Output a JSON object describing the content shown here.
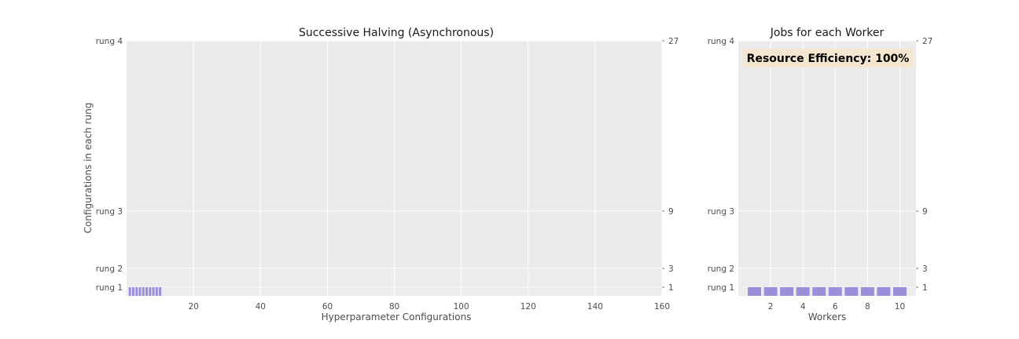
{
  "chart_data": [
    {
      "type": "bar",
      "title": "Successive Halving (Asynchronous)",
      "xlabel": "Hyperparameter Configurations",
      "ylabel": "Configurations in each rung",
      "xlim": [
        0,
        160
      ],
      "xticks": [
        "20",
        "40",
        "60",
        "80",
        "100",
        "120",
        "140",
        "160"
      ],
      "yticks_left": [
        "rung 1",
        "rung 2",
        "rung 3",
        "rung 4"
      ],
      "yticks_right": [
        "1",
        "3",
        "9",
        "27"
      ],
      "grid": true,
      "bar_color": "#9b8fdc",
      "configurations": [
        1,
        2,
        3,
        4,
        5,
        6,
        7,
        8,
        9,
        10
      ],
      "rung": [
        1,
        1,
        1,
        1,
        1,
        1,
        1,
        1,
        1,
        1
      ]
    },
    {
      "type": "bar",
      "title": "Jobs for each Worker",
      "xlabel": "Workers",
      "xlim": [
        0,
        11
      ],
      "xticks": [
        "2",
        "4",
        "6",
        "8",
        "10"
      ],
      "yticks_left": [
        "rung 1",
        "rung 2",
        "rung 3",
        "rung 4"
      ],
      "yticks_right": [
        "1",
        "3",
        "9",
        "27"
      ],
      "grid": true,
      "bar_color": "#9b8fdc",
      "workers": [
        1,
        2,
        3,
        4,
        5,
        6,
        7,
        8,
        9,
        10
      ],
      "rung": [
        1,
        1,
        1,
        1,
        1,
        1,
        1,
        1,
        1,
        1
      ],
      "annotation": "Resource Efficiency: 100%",
      "annotation_bg": "#f5e6d0"
    }
  ]
}
